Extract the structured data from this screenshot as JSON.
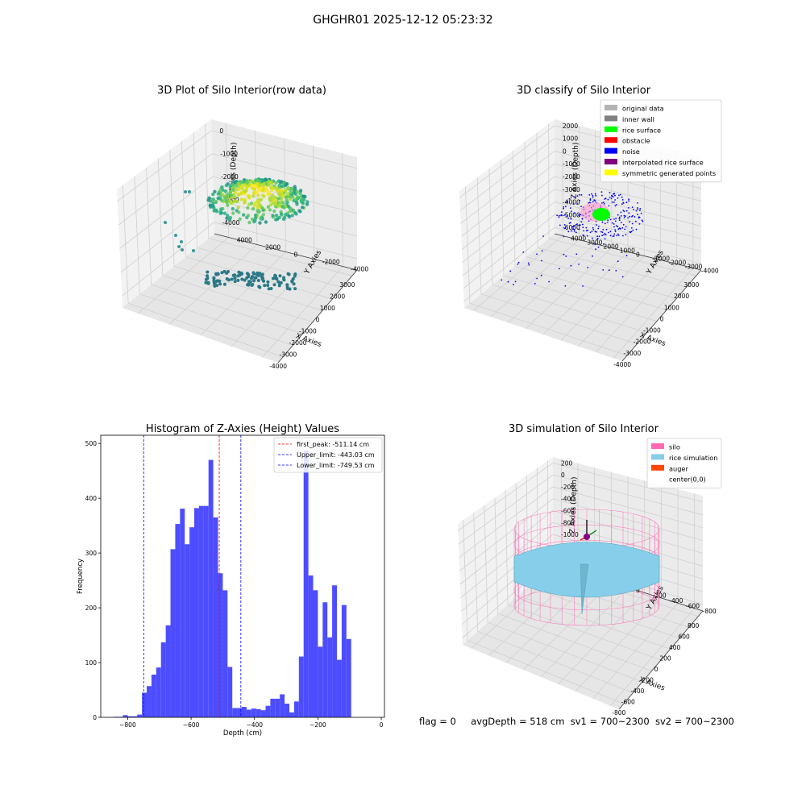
{
  "figure": {
    "suptitle": "GHGHR01 2025-12-12 05:23:32",
    "footer": {
      "flag": "flag = 0",
      "avg": "avgDepth = 518 cm",
      "sv1": "sv1 = 700~2300",
      "sv2": "sv2 = 700~2300"
    }
  },
  "chart_data": [
    {
      "type": "scatter",
      "title": "3D Plot of Silo Interior(row data)",
      "xlabel": "X Axies",
      "ylabel": "Y Axies",
      "zlabel": "Z Axies (Depth)",
      "x_ticks": [
        "-4000",
        "-3000",
        "-2000",
        "-1000",
        "0",
        "1000",
        "2000",
        "3000"
      ],
      "y_ticks": [
        "-4000",
        "-2000",
        "0",
        "2000",
        "4000"
      ],
      "z_ticks": [
        "0",
        "-1000",
        "-2000",
        "-3000",
        "-4000"
      ],
      "colormap": "viridis",
      "grid": true
    },
    {
      "type": "scatter",
      "title": "3D classify of Silo Interior",
      "xlabel": "X Axies",
      "ylabel": "Y Axies",
      "zlabel": "Z Axies (Depth)",
      "x_ticks": [
        "-4000",
        "-3000",
        "-2000",
        "-1000",
        "0",
        "1000",
        "2000",
        "3000"
      ],
      "y_ticks": [
        "-4000",
        "-3000",
        "-2000",
        "-1000",
        "0",
        "1000",
        "2000",
        "3000",
        "4000"
      ],
      "z_ticks": [
        "2000",
        "1000",
        "0",
        "-1000",
        "-2000",
        "-3000",
        "-4000",
        "-5000",
        "-6000"
      ],
      "legend": [
        {
          "label": "original data",
          "color": "#b3b3b3"
        },
        {
          "label": "inner wall",
          "color": "#808080"
        },
        {
          "label": "rice surface",
          "color": "#00ff00"
        },
        {
          "label": "obstacle",
          "color": "#ff0000"
        },
        {
          "label": "noise",
          "color": "#0000ff"
        },
        {
          "label": "interpolated rice surface",
          "color": "#800080"
        },
        {
          "label": "symmetric generated points",
          "color": "#ffff00"
        }
      ],
      "legend_loc": "top-right",
      "grid": true
    },
    {
      "type": "bar",
      "title": "Histogram of Z-Axies (Height) Values",
      "xlabel": "Depth (cm)",
      "ylabel": "Frequency",
      "xlim": [
        -885,
        10
      ],
      "ylim": [
        0,
        515
      ],
      "x_ticks": [
        -800,
        -600,
        -400,
        -200,
        0
      ],
      "y_ticks": [
        0,
        100,
        200,
        300,
        400,
        500
      ],
      "bar_color": "#4d4dff",
      "bins": [
        {
          "x0": -845,
          "x1": -830,
          "v": 1
        },
        {
          "x0": -830,
          "x1": -815,
          "v": 1
        },
        {
          "x0": -815,
          "x1": -800,
          "v": 4
        },
        {
          "x0": -800,
          "x1": -785,
          "v": 2
        },
        {
          "x0": -785,
          "x1": -770,
          "v": 2
        },
        {
          "x0": -770,
          "x1": -755,
          "v": 5
        },
        {
          "x0": -755,
          "x1": -740,
          "v": 45
        },
        {
          "x0": -740,
          "x1": -725,
          "v": 57
        },
        {
          "x0": -725,
          "x1": -710,
          "v": 78
        },
        {
          "x0": -710,
          "x1": -695,
          "v": 91
        },
        {
          "x0": -695,
          "x1": -680,
          "v": 137
        },
        {
          "x0": -680,
          "x1": -665,
          "v": 168
        },
        {
          "x0": -665,
          "x1": -650,
          "v": 307
        },
        {
          "x0": -650,
          "x1": -635,
          "v": 353
        },
        {
          "x0": -635,
          "x1": -620,
          "v": 381
        },
        {
          "x0": -620,
          "x1": -605,
          "v": 316
        },
        {
          "x0": -605,
          "x1": -590,
          "v": 347
        },
        {
          "x0": -590,
          "x1": -575,
          "v": 382
        },
        {
          "x0": -575,
          "x1": -560,
          "v": 386
        },
        {
          "x0": -560,
          "x1": -545,
          "v": 386
        },
        {
          "x0": -545,
          "x1": -530,
          "v": 470
        },
        {
          "x0": -530,
          "x1": -515,
          "v": 365
        },
        {
          "x0": -515,
          "x1": -500,
          "v": 263
        },
        {
          "x0": -500,
          "x1": -485,
          "v": 232
        },
        {
          "x0": -485,
          "x1": -470,
          "v": 92
        },
        {
          "x0": -470,
          "x1": -455,
          "v": 17
        },
        {
          "x0": -455,
          "x1": -440,
          "v": 17
        },
        {
          "x0": -440,
          "x1": -425,
          "v": 19
        },
        {
          "x0": -425,
          "x1": -410,
          "v": 14
        },
        {
          "x0": -410,
          "x1": -395,
          "v": 16
        },
        {
          "x0": -395,
          "x1": -380,
          "v": 15
        },
        {
          "x0": -380,
          "x1": -365,
          "v": 13
        },
        {
          "x0": -365,
          "x1": -350,
          "v": 21
        },
        {
          "x0": -350,
          "x1": -335,
          "v": 34
        },
        {
          "x0": -335,
          "x1": -320,
          "v": 34
        },
        {
          "x0": -320,
          "x1": -305,
          "v": 42
        },
        {
          "x0": -305,
          "x1": -290,
          "v": 25
        },
        {
          "x0": -290,
          "x1": -275,
          "v": 9
        },
        {
          "x0": -275,
          "x1": -260,
          "v": 29
        },
        {
          "x0": -260,
          "x1": -245,
          "v": 111
        },
        {
          "x0": -245,
          "x1": -230,
          "v": 487
        },
        {
          "x0": -230,
          "x1": -215,
          "v": 259
        },
        {
          "x0": -215,
          "x1": -200,
          "v": 232
        },
        {
          "x0": -200,
          "x1": -185,
          "v": 129
        },
        {
          "x0": -185,
          "x1": -170,
          "v": 210
        },
        {
          "x0": -170,
          "x1": -155,
          "v": 146
        },
        {
          "x0": -155,
          "x1": -140,
          "v": 241
        },
        {
          "x0": -140,
          "x1": -125,
          "v": 105
        },
        {
          "x0": -125,
          "x1": -110,
          "v": 205
        },
        {
          "x0": -110,
          "x1": -95,
          "v": 143
        }
      ],
      "vlines": [
        {
          "x": -511.14,
          "color": "#ff0000",
          "label": "first_peak: -511.14 cm"
        },
        {
          "x": -443.03,
          "color": "#0000ff",
          "label": "Upper_limit: -443.03 cm"
        },
        {
          "x": -749.53,
          "color": "#0000ff",
          "label": "Lower_limit: -749.53 cm"
        }
      ],
      "legend_loc": "top-right"
    },
    {
      "type": "surface",
      "title": "3D simulation of Silo Interior",
      "xlabel": "X Axies",
      "ylabel": "Y Axies",
      "zlabel": "Z Axies (Depth)",
      "x_ticks": [
        "-800",
        "-600",
        "-400",
        "-200",
        "0",
        "200",
        "400",
        "600",
        "800"
      ],
      "y_ticks": [
        "-800",
        "-600",
        "-400",
        "-200",
        "0",
        "200",
        "400",
        "600",
        "800"
      ],
      "z_ticks": [
        "200",
        "0",
        "-200",
        "-400",
        "-600",
        "-800",
        "-1000",
        "-1200",
        "-1400"
      ],
      "legend": [
        {
          "label": "silo",
          "color": "#ff69b4"
        },
        {
          "label": "rice simulation",
          "color": "#87ceeb"
        },
        {
          "label": "auger",
          "color": "#ff4500"
        },
        {
          "label": "center(0,0)",
          "color": ""
        }
      ],
      "legend_loc": "top-right",
      "grid": true
    }
  ]
}
